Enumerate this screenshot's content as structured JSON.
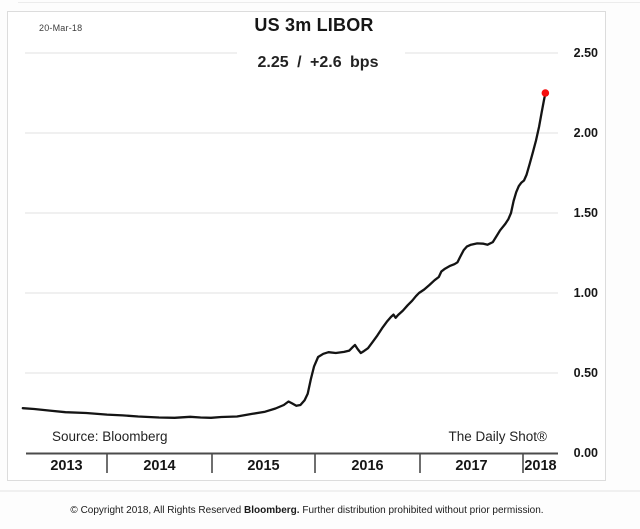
{
  "header": {
    "date_label": "20-Mar-18",
    "title": "US 3m LIBOR",
    "subtitle": "2.25 / +2.6 bps"
  },
  "footer": {
    "source": "Source: Bloomberg",
    "credit": "The Daily Shot®"
  },
  "copyright": {
    "prefix": "© Copyright 2018, All Rights Reserved ",
    "brand": "Bloomberg.",
    "suffix": " Further distribution prohibited without prior permission."
  },
  "chart_data": {
    "type": "line",
    "title": "US 3m LIBOR",
    "date": "20-Mar-18",
    "last_value": 2.25,
    "daily_change_bps": 2.6,
    "xlabel": "",
    "ylabel": "",
    "grid": "horizontal",
    "legend_position": "none",
    "x_axis": {
      "tick_labels": [
        "2013",
        "2014",
        "2015",
        "2016",
        "2017",
        "2018"
      ],
      "range_years": [
        2013.19,
        2018.34
      ]
    },
    "y_axis": {
      "ticks": [
        {
          "v": 0.0,
          "label": "0.00"
        },
        {
          "v": 0.5,
          "label": "0.50"
        },
        {
          "v": 1.0,
          "label": "1.00"
        },
        {
          "v": 1.5,
          "label": "1.50"
        },
        {
          "v": 2.0,
          "label": "2.00"
        },
        {
          "v": 2.5,
          "label": "2.50"
        }
      ],
      "ylim": [
        0.0,
        2.5
      ]
    },
    "line_color": "#141414",
    "marker": {
      "x": 2018.215,
      "y": 2.25,
      "color": "#f50f0f"
    },
    "series": [
      {
        "name": "US 3m LIBOR (%)",
        "points": [
          [
            2013.19,
            0.28
          ],
          [
            2013.3,
            0.275
          ],
          [
            2013.45,
            0.265
          ],
          [
            2013.6,
            0.255
          ],
          [
            2013.8,
            0.25
          ],
          [
            2014.0,
            0.24
          ],
          [
            2014.15,
            0.235
          ],
          [
            2014.3,
            0.228
          ],
          [
            2014.5,
            0.222
          ],
          [
            2014.65,
            0.22
          ],
          [
            2014.8,
            0.226
          ],
          [
            2014.9,
            0.222
          ],
          [
            2015.0,
            0.22
          ],
          [
            2015.1,
            0.225
          ],
          [
            2015.25,
            0.228
          ],
          [
            2015.4,
            0.245
          ],
          [
            2015.52,
            0.258
          ],
          [
            2015.62,
            0.278
          ],
          [
            2015.7,
            0.3
          ],
          [
            2015.745,
            0.322
          ],
          [
            2015.78,
            0.31
          ],
          [
            2015.82,
            0.295
          ],
          [
            2015.86,
            0.3
          ],
          [
            2015.9,
            0.33
          ],
          [
            2015.93,
            0.37
          ],
          [
            2015.96,
            0.46
          ],
          [
            2015.99,
            0.54
          ],
          [
            2016.03,
            0.6
          ],
          [
            2016.08,
            0.62
          ],
          [
            2016.13,
            0.63
          ],
          [
            2016.2,
            0.625
          ],
          [
            2016.28,
            0.632
          ],
          [
            2016.33,
            0.64
          ],
          [
            2016.36,
            0.66
          ],
          [
            2016.385,
            0.675
          ],
          [
            2016.41,
            0.65
          ],
          [
            2016.44,
            0.625
          ],
          [
            2016.47,
            0.637
          ],
          [
            2016.51,
            0.655
          ],
          [
            2016.55,
            0.69
          ],
          [
            2016.6,
            0.735
          ],
          [
            2016.645,
            0.78
          ],
          [
            2016.69,
            0.82
          ],
          [
            2016.73,
            0.85
          ],
          [
            2016.755,
            0.865
          ],
          [
            2016.775,
            0.845
          ],
          [
            2016.8,
            0.863
          ],
          [
            2016.845,
            0.89
          ],
          [
            2016.89,
            0.923
          ],
          [
            2016.935,
            0.952
          ],
          [
            2016.97,
            0.98
          ],
          [
            2017.0,
            1.0
          ],
          [
            2017.05,
            1.022
          ],
          [
            2017.1,
            1.05
          ],
          [
            2017.15,
            1.08
          ],
          [
            2017.19,
            1.1
          ],
          [
            2017.215,
            1.135
          ],
          [
            2017.25,
            1.152
          ],
          [
            2017.3,
            1.17
          ],
          [
            2017.34,
            1.18
          ],
          [
            2017.37,
            1.192
          ],
          [
            2017.395,
            1.225
          ],
          [
            2017.43,
            1.268
          ],
          [
            2017.46,
            1.29
          ],
          [
            2017.5,
            1.302
          ],
          [
            2017.56,
            1.31
          ],
          [
            2017.62,
            1.308
          ],
          [
            2017.66,
            1.302
          ],
          [
            2017.71,
            1.318
          ],
          [
            2017.75,
            1.36
          ],
          [
            2017.78,
            1.392
          ],
          [
            2017.83,
            1.432
          ],
          [
            2017.86,
            1.462
          ],
          [
            2017.885,
            1.5
          ],
          [
            2017.91,
            1.575
          ],
          [
            2017.935,
            1.63
          ],
          [
            2017.96,
            1.668
          ],
          [
            2017.985,
            1.69
          ],
          [
            2018.01,
            1.703
          ],
          [
            2018.035,
            1.74
          ],
          [
            2018.065,
            1.81
          ],
          [
            2018.095,
            1.88
          ],
          [
            2018.125,
            1.953
          ],
          [
            2018.155,
            2.04
          ],
          [
            2018.18,
            2.13
          ],
          [
            2018.2,
            2.2
          ],
          [
            2018.215,
            2.25
          ]
        ]
      }
    ]
  }
}
